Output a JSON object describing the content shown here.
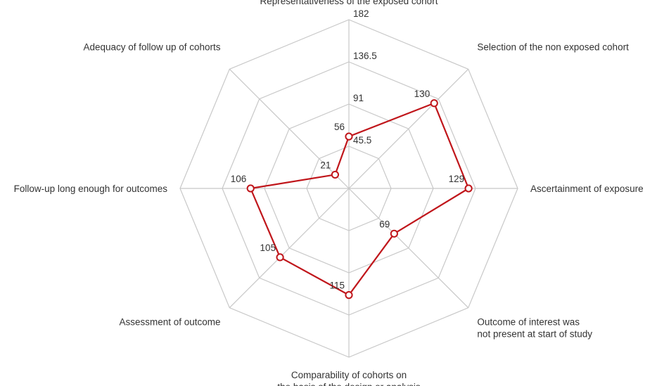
{
  "chart_data": {
    "type": "radar",
    "axes": [
      {
        "label_lines": [
          "Representativeness of the exposed cohort"
        ],
        "value": 56
      },
      {
        "label_lines": [
          "Selection of the non exposed cohort"
        ],
        "value": 130
      },
      {
        "label_lines": [
          "Ascertainment of exposure"
        ],
        "value": 129
      },
      {
        "label_lines": [
          "Outcome of interest was",
          "not present at start of study"
        ],
        "value": 69
      },
      {
        "label_lines": [
          "Comparability of cohorts on",
          "the basis of the design or analysis"
        ],
        "value": 115
      },
      {
        "label_lines": [
          "Assessment of outcome"
        ],
        "value": 105
      },
      {
        "label_lines": [
          "Follow-up long enough for outcomes"
        ],
        "value": 106
      },
      {
        "label_lines": [
          "Adequacy of follow up of cohorts"
        ],
        "value": 21
      }
    ],
    "rlim": [
      0,
      182
    ],
    "ticks": [
      "45.5",
      "91",
      "136.5",
      "182"
    ],
    "grid": true,
    "series": [
      {
        "values": [
          56,
          130,
          129,
          69,
          115,
          105,
          106,
          21
        ],
        "data_labels": [
          "56",
          "130",
          "129",
          "69",
          "115",
          "105",
          "106",
          "21"
        ],
        "color": "#c0161b"
      }
    ],
    "grid_color": "#c8c8c8"
  }
}
